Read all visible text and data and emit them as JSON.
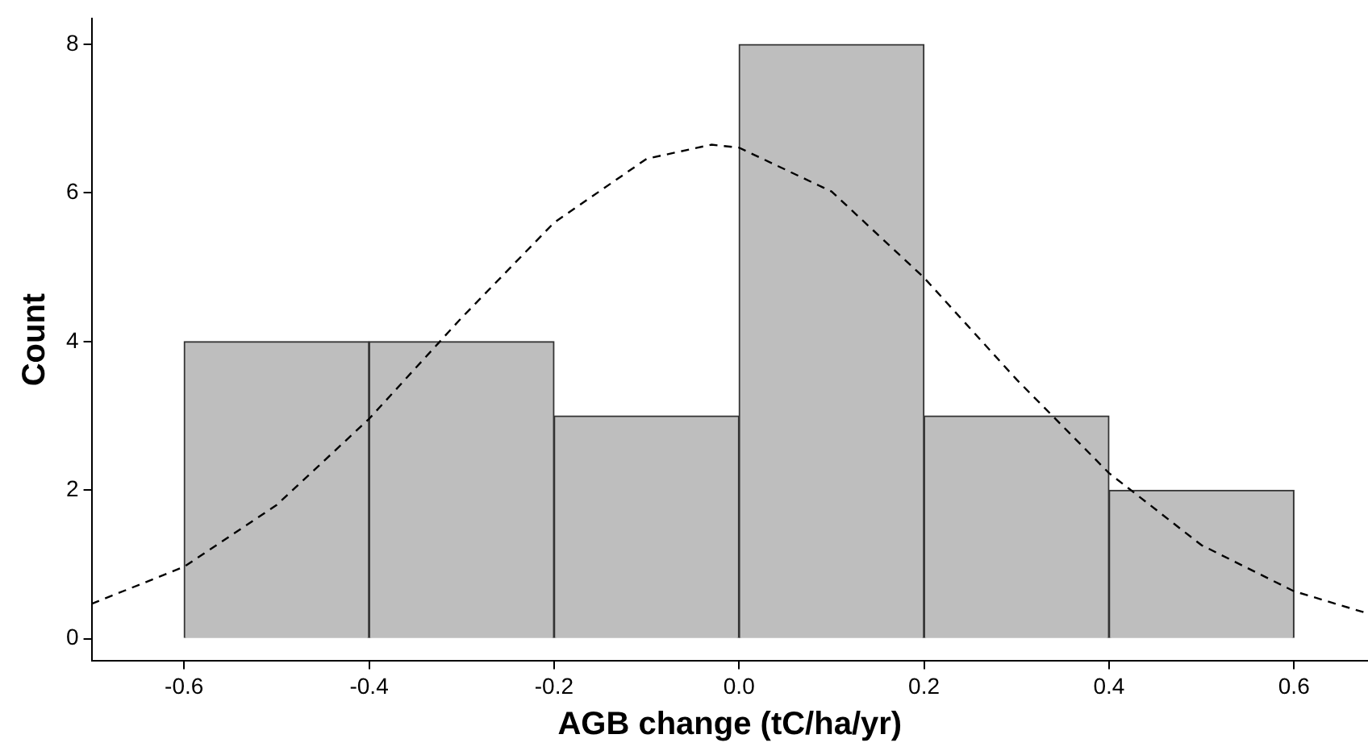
{
  "chart_data": {
    "type": "histogram",
    "xlabel": "AGB change (tC/ha/yr)",
    "ylabel": "Count",
    "bins": [
      -0.6,
      -0.4,
      -0.2,
      0.0,
      0.2,
      0.4,
      0.6
    ],
    "values": [
      4,
      4,
      3,
      8,
      3,
      2
    ],
    "color": "#bebebe",
    "xlim": [
      -0.7,
      0.68
    ],
    "xticks": [
      {
        "value": -0.6,
        "label": "-0.6"
      },
      {
        "value": -0.4,
        "label": "-0.4"
      },
      {
        "value": -0.2,
        "label": "-0.2"
      },
      {
        "value": 0,
        "label": "0.0"
      },
      {
        "value": 0.2,
        "label": "0.2"
      },
      {
        "value": 0.4,
        "label": "0.4"
      },
      {
        "value": 0.6,
        "label": "0.6"
      }
    ],
    "ylim": [
      -0.3,
      8.35
    ],
    "yticks": [
      0,
      2,
      4,
      6,
      8
    ],
    "grid": false,
    "legend": false,
    "series": [
      {
        "type": "line",
        "color": "#000000",
        "line_style": "dashed",
        "marker": "none",
        "x": [
          -0.7,
          -0.6,
          -0.5,
          -0.4,
          -0.3,
          -0.2,
          -0.1,
          -0.03,
          0,
          0.1,
          0.2,
          0.3,
          0.4,
          0.5,
          0.6,
          0.68
        ],
        "values": [
          0.47,
          0.97,
          1.8,
          2.96,
          4.32,
          5.6,
          6.46,
          6.65,
          6.61,
          6.02,
          4.86,
          3.49,
          2.23,
          1.26,
          0.64,
          0.34
        ]
      }
    ]
  }
}
